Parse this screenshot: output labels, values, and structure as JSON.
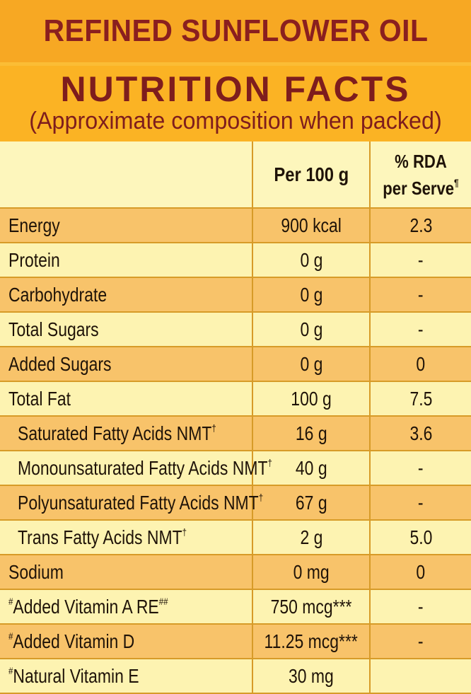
{
  "banner": {
    "title": "REFINED SUNFLOWER OIL"
  },
  "header": {
    "title": "NUTRITION FACTS",
    "subtitle": "(Approximate composition when packed)"
  },
  "columns": {
    "per100": "Per 100 g",
    "rda_line1": "% RDA",
    "rda_line2": "per Serve",
    "rda_mark": "¶"
  },
  "rows": [
    {
      "name": "Energy",
      "value": "900 kcal",
      "rda": "2.3"
    },
    {
      "name": "Protein",
      "value": "0 g",
      "rda": "-"
    },
    {
      "name": "Carbohydrate",
      "value": "0 g",
      "rda": "-"
    },
    {
      "name": "Total Sugars",
      "value": "0 g",
      "rda": "-"
    },
    {
      "name": "Added Sugars",
      "value": "0 g",
      "rda": "0"
    },
    {
      "name": "Total Fat",
      "value": "100 g",
      "rda": "7.5"
    },
    {
      "name": "Saturated Fatty Acids NMT",
      "mark": "†",
      "value": "16 g",
      "rda": "3.6"
    },
    {
      "name": "Monounsaturated Fatty Acids NMT",
      "mark": "†",
      "value": "40 g",
      "rda": "-"
    },
    {
      "name": "Polyunsaturated Fatty Acids NMT",
      "mark": "†",
      "value": "67 g",
      "rda": "-"
    },
    {
      "name": "Trans Fatty Acids NMT",
      "mark": "†",
      "value": "2 g",
      "rda": "5.0"
    },
    {
      "name": "Sodium",
      "value": "0 mg",
      "rda": "0"
    },
    {
      "prefix": "#",
      "name": "Added Vitamin A RE",
      "mark": "##",
      "value": "750 mcg***",
      "rda": "-"
    },
    {
      "prefix": "#",
      "name": "Added Vitamin D",
      "value": "11.25 mcg***",
      "rda": "-"
    },
    {
      "prefix": "#",
      "name": "Natural Vitamin E",
      "value": "30 mg",
      "rda": ""
    }
  ]
}
